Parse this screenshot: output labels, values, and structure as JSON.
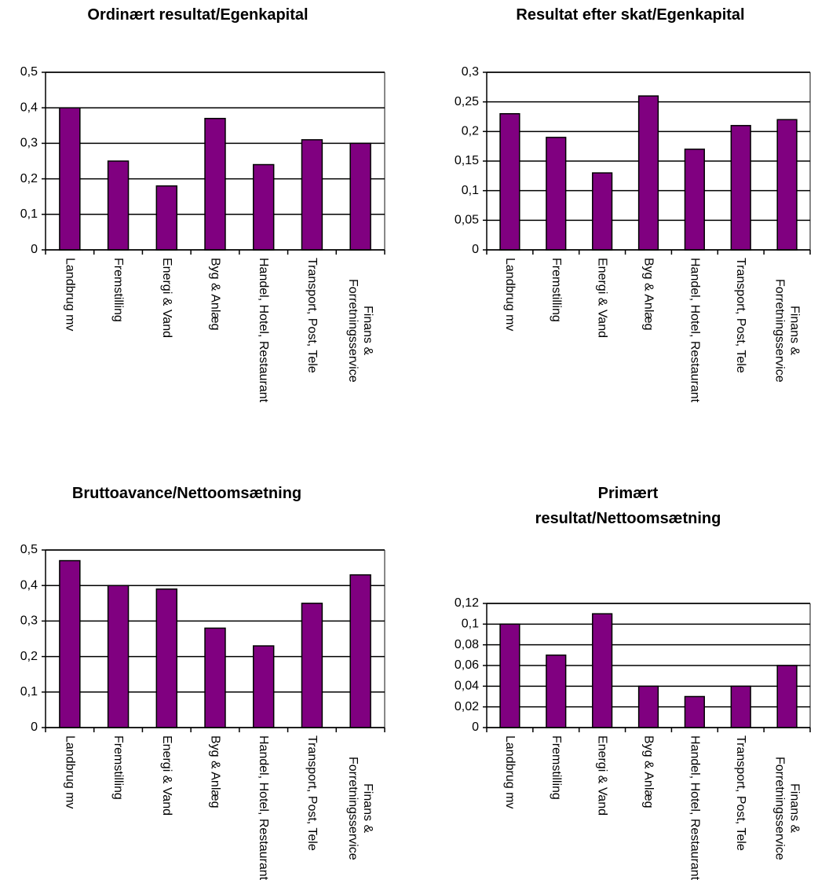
{
  "chart_data": [
    {
      "type": "bar",
      "title": "Ordinært resultat/Egenkapital",
      "categories": [
        "Landbrug mv",
        "Fremstilling",
        "Energi & Vand",
        "Byg & Anlæg",
        "Handel, Hotel, Restaurant",
        "Transport, Post, Tele",
        "Finans & Forretningsservice"
      ],
      "values": [
        0.4,
        0.25,
        0.18,
        0.37,
        0.24,
        0.31,
        0.3
      ],
      "color": "#800080",
      "ylim": [
        0,
        0.5
      ],
      "yticks": [
        0,
        {
          "value": 0.1,
          "label": "0,1"
        },
        {
          "value": 0.2,
          "label": "0,2"
        },
        {
          "value": 0.3,
          "label": "0,3"
        },
        {
          "value": 0.4,
          "label": "0,4"
        },
        {
          "value": 0.5,
          "label": "0,5"
        }
      ],
      "grid": true
    },
    {
      "type": "bar",
      "title": "Resultat efter skat/Egenkapital",
      "categories": [
        "Landbrug mv",
        "Fremstilling",
        "Energi & Vand",
        "Byg & Anlæg",
        "Handel, Hotel, Restaurant",
        "Transport, Post, Tele",
        "Finans & Forretningsservice"
      ],
      "values": [
        0.23,
        0.19,
        0.13,
        0.26,
        0.17,
        0.21,
        0.22
      ],
      "color": "#800080",
      "ylim": [
        0,
        0.3
      ],
      "yticks": [
        0,
        {
          "value": 0.05,
          "label": "0,05"
        },
        {
          "value": 0.1,
          "label": "0,1"
        },
        {
          "value": 0.15,
          "label": "0,15"
        },
        {
          "value": 0.2,
          "label": "0,2"
        },
        {
          "value": 0.25,
          "label": "0,25"
        },
        {
          "value": 0.3,
          "label": "0,3"
        }
      ],
      "grid": true
    },
    {
      "type": "bar",
      "title": "Bruttoavance/Nettoomsætning",
      "categories": [
        "Landbrug mv",
        "Fremstilling",
        "Energi & Vand",
        "Byg & Anlæg",
        "Handel, Hotel, Restaurant",
        "Transport, Post, Tele",
        "Finans & Forretningsservice"
      ],
      "values": [
        0.47,
        0.4,
        0.39,
        0.28,
        0.23,
        0.35,
        0.43
      ],
      "color": "#800080",
      "ylim": [
        0,
        0.5
      ],
      "yticks": [
        0,
        {
          "value": 0.1,
          "label": "0,1"
        },
        {
          "value": 0.2,
          "label": "0,2"
        },
        {
          "value": 0.3,
          "label": "0,3"
        },
        {
          "value": 0.4,
          "label": "0,4"
        },
        {
          "value": 0.5,
          "label": "0,5"
        }
      ],
      "grid": true
    },
    {
      "type": "bar",
      "title": "Primært resultat/Nettoomsætning",
      "categories": [
        "Landbrug mv",
        "Fremstilling",
        "Energi & Vand",
        "Byg & Anlæg",
        "Handel, Hotel, Restaurant",
        "Transport, Post, Tele",
        "Finans & Forretningsservice"
      ],
      "values": [
        0.1,
        0.07,
        0.11,
        0.04,
        0.03,
        0.04,
        0.06
      ],
      "color": "#800080",
      "ylim": [
        0,
        0.12
      ],
      "yticks": [
        0,
        {
          "value": 0.02,
          "label": "0,02"
        },
        {
          "value": 0.04,
          "label": "0,04"
        },
        {
          "value": 0.06,
          "label": "0,06"
        },
        {
          "value": 0.08,
          "label": "0,08"
        },
        {
          "value": 0.1,
          "label": "0,1"
        },
        {
          "value": 0.12,
          "label": "0,12"
        }
      ],
      "grid": true
    }
  ]
}
